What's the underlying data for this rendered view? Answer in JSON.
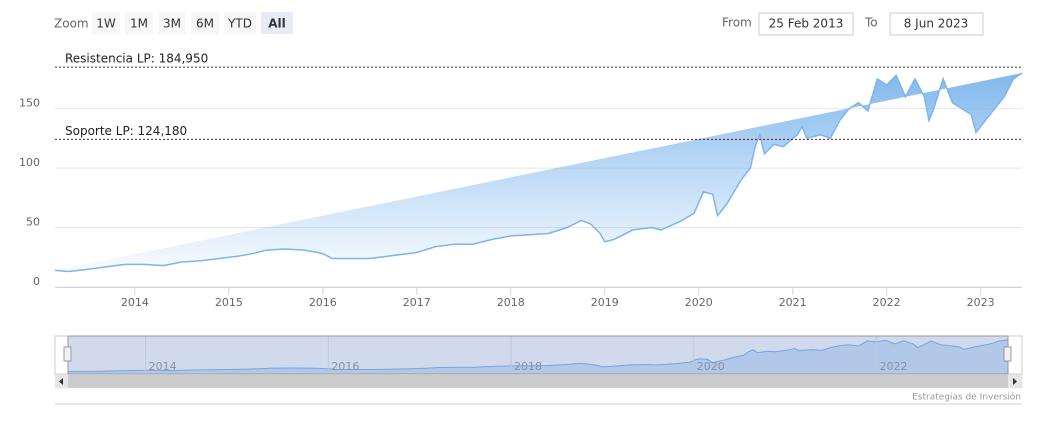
{
  "zoom_label": "Zoom",
  "range_buttons": [
    "1W",
    "1M",
    "3M",
    "6M",
    "YTD",
    "All"
  ],
  "selected_button": 5,
  "from_label": "From",
  "from_date": "25 Feb 2013",
  "to_label": "To",
  "to_date": "8 Jun 2023",
  "credits": "Estrategias de Inversión",
  "chart_data": {
    "type": "area",
    "x": [
      2013.15,
      2013.3,
      2013.5,
      2013.7,
      2013.9,
      2014.1,
      2014.3,
      2014.5,
      2014.7,
      2014.9,
      2015.1,
      2015.25,
      2015.4,
      2015.6,
      2015.8,
      2015.95,
      2016.0,
      2016.1,
      2016.3,
      2016.5,
      2016.7,
      2016.9,
      2017.0,
      2017.2,
      2017.4,
      2017.6,
      2017.8,
      2018.0,
      2018.2,
      2018.4,
      2018.6,
      2018.75,
      2018.85,
      2018.95,
      2019.0,
      2019.1,
      2019.3,
      2019.5,
      2019.6,
      2019.8,
      2019.95,
      2020.05,
      2020.15,
      2020.2,
      2020.3,
      2020.45,
      2020.55,
      2020.6,
      2020.65,
      2020.7,
      2020.8,
      2020.9,
      2021.0,
      2021.05,
      2021.1,
      2021.15,
      2021.3,
      2021.4,
      2021.5,
      2021.6,
      2021.7,
      2021.8,
      2021.9,
      2022.0,
      2022.1,
      2022.2,
      2022.3,
      2022.4,
      2022.45,
      2022.5,
      2022.6,
      2022.7,
      2022.8,
      2022.9,
      2022.95,
      2023.05,
      2023.15,
      2023.25,
      2023.35,
      2023.44
    ],
    "values": [
      14,
      13,
      15,
      17,
      19,
      19,
      18,
      21,
      22,
      24,
      26,
      28,
      31,
      32,
      31,
      29,
      28,
      24,
      24,
      24,
      26,
      28,
      29,
      34,
      36,
      36,
      40,
      43,
      44,
      45,
      50,
      56,
      53,
      45,
      38,
      40,
      48,
      50,
      48,
      55,
      62,
      80,
      78,
      60,
      70,
      90,
      100,
      118,
      128,
      112,
      120,
      118,
      125,
      128,
      135,
      125,
      128,
      125,
      140,
      150,
      155,
      148,
      175,
      170,
      178,
      160,
      175,
      160,
      140,
      150,
      175,
      155,
      150,
      145,
      130,
      140,
      150,
      160,
      175,
      180
    ],
    "color": "#7cb5ec",
    "xlim": [
      2013.15,
      2023.44
    ],
    "ylim": [
      0,
      201
    ],
    "xticks": [
      2014,
      2015,
      2016,
      2017,
      2018,
      2019,
      2020,
      2021,
      2022,
      2023
    ],
    "yticks": [
      0,
      50,
      100,
      150
    ],
    "grid": true,
    "plot_lines": [
      {
        "value": 184.95,
        "label": "Resistencia LP: 184,950",
        "color": "#333333"
      },
      {
        "value": 124.18,
        "label": "Soporte LP: 124,180",
        "color": "#7a1020"
      }
    ]
  }
}
